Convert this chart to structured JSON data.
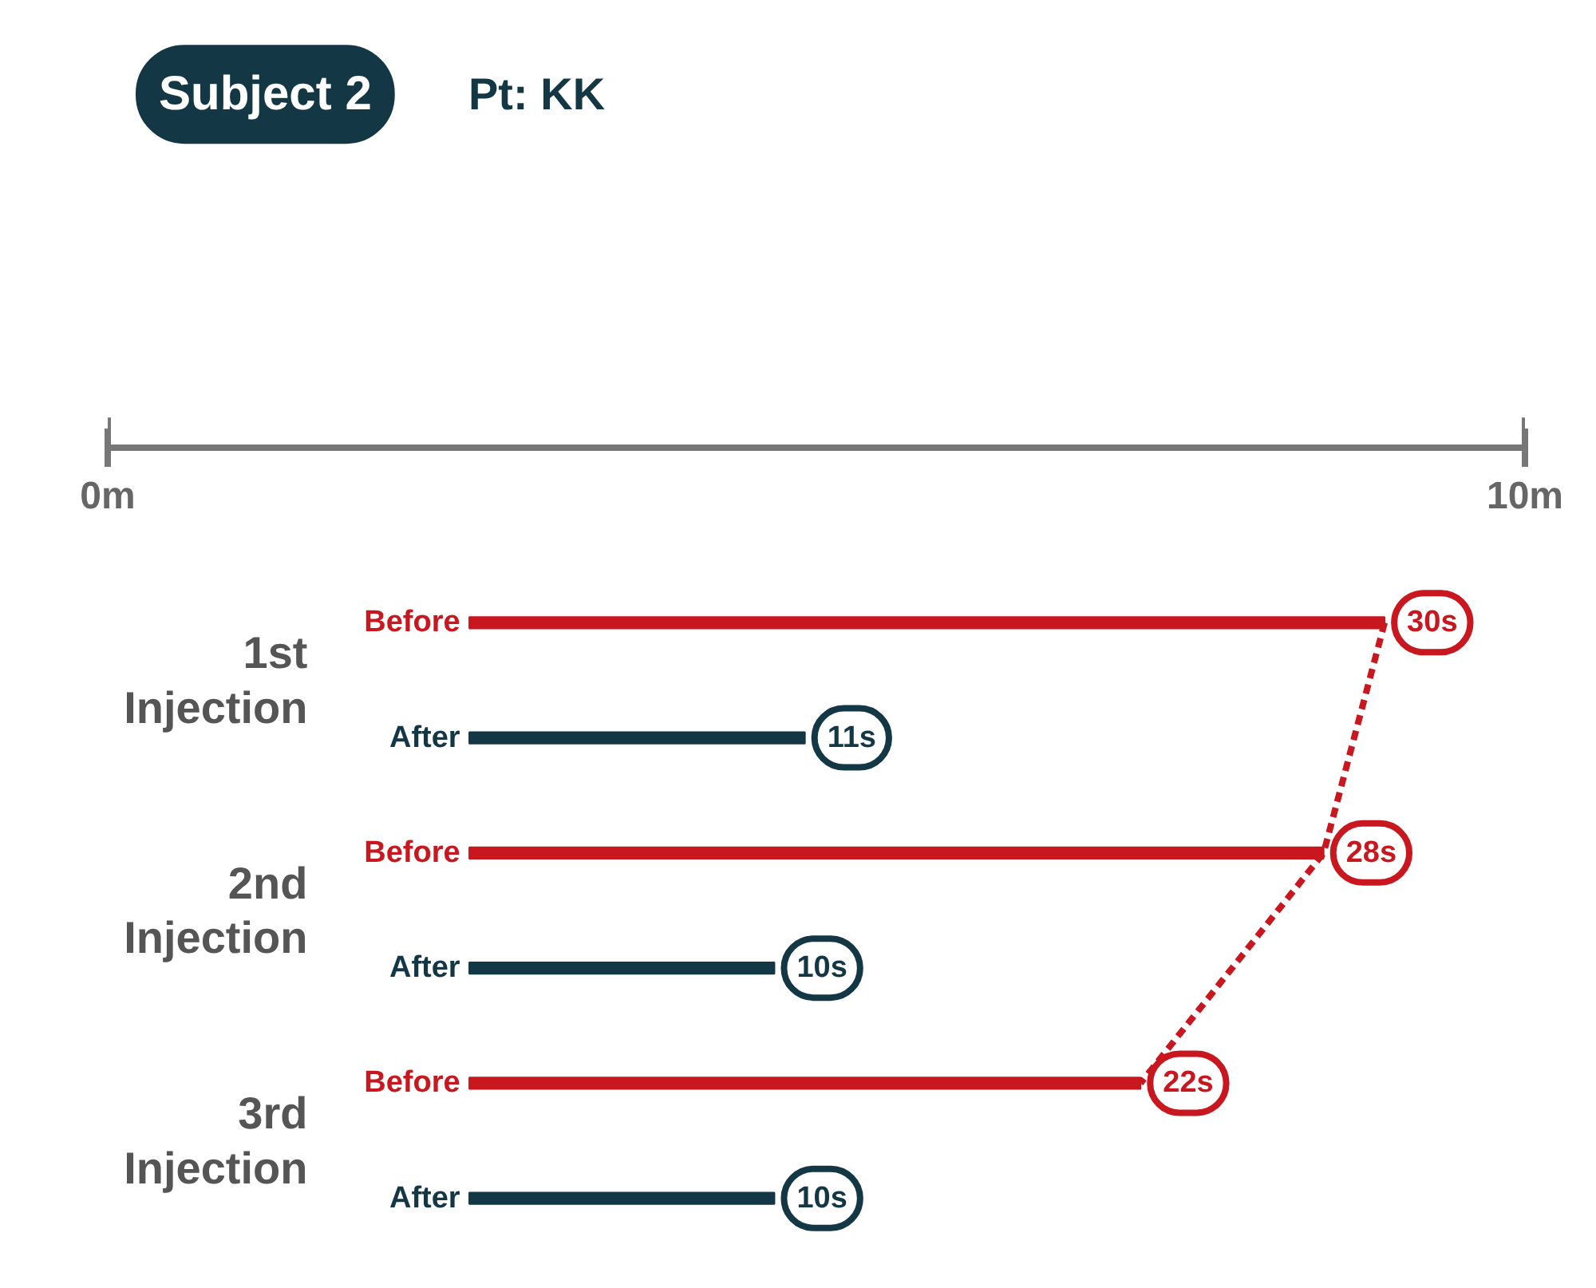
{
  "chart_data": {
    "type": "bar",
    "orientation": "horizontal",
    "title": "Subject 2",
    "subtitle": "Pt: KK",
    "categories": [
      "Before",
      "After",
      "Before",
      "After",
      "Before",
      "After"
    ],
    "values": [
      30,
      11,
      28,
      10,
      22,
      10
    ],
    "colors": [
      "#c8171e",
      "#133745",
      "#c8171e",
      "#133745",
      "#c8171e",
      "#133745"
    ],
    "value_labels": [
      "30s",
      "11s",
      "28s",
      "10s",
      "22s",
      "10s"
    ],
    "series": [
      {
        "type": "line",
        "line_style": "dashed",
        "color": "#c8171e",
        "values": [
          30,
          null,
          28,
          null,
          22,
          null
        ]
      }
    ],
    "annotations": [
      "1st\nInjection",
      "2nd\nInjection",
      "3rd\nInjection"
    ],
    "x2lim": [
      0,
      10
    ],
    "x2ticks": [
      {
        "value": 0,
        "label": "0m"
      },
      {
        "value": 10,
        "label": "10m"
      }
    ],
    "grid": false
  }
}
